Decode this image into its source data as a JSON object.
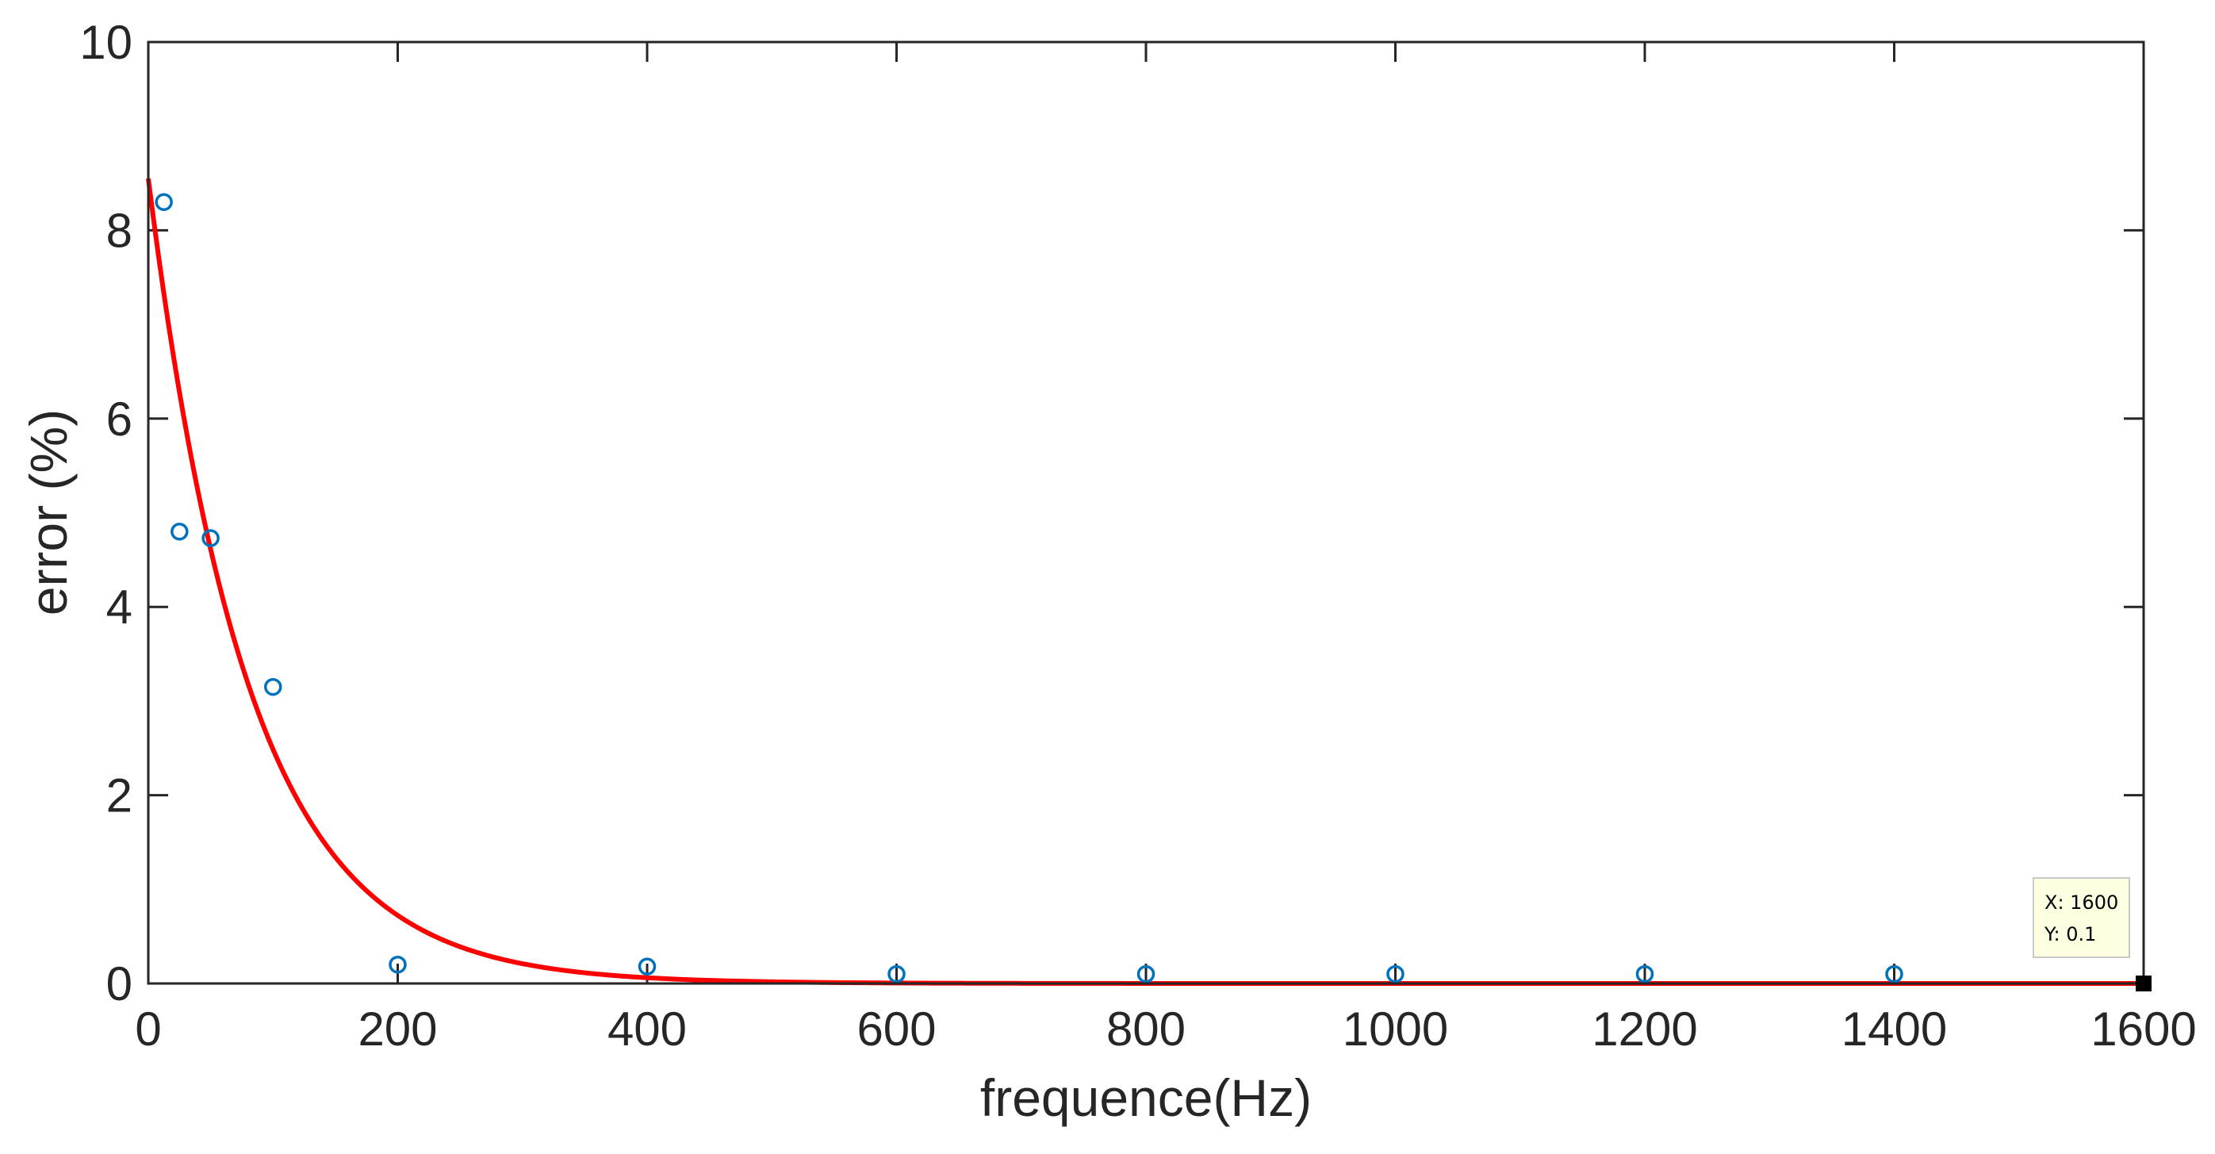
{
  "chart_data": {
    "type": "scatter",
    "xlabel": "frequence(Hz)",
    "ylabel": "error (%)",
    "xlim": [
      0,
      1600
    ],
    "ylim": [
      0,
      10
    ],
    "xticks": [
      0,
      200,
      400,
      600,
      800,
      1000,
      1200,
      1400,
      1600
    ],
    "yticks": [
      0,
      2,
      4,
      6,
      8,
      10
    ],
    "xtick_labels": [
      "0",
      "200",
      "400",
      "600",
      "800",
      "1000",
      "1200",
      "1400",
      "1600"
    ],
    "ytick_labels": [
      "0",
      "2",
      "4",
      "6",
      "8",
      "10"
    ],
    "grid": false,
    "box": true,
    "series": [
      {
        "kind": "markers",
        "marker": "circle-open",
        "color": "#0072BD",
        "points": [
          {
            "x": 12.5,
            "y": 8.3
          },
          {
            "x": 25,
            "y": 4.8
          },
          {
            "x": 50,
            "y": 4.73
          },
          {
            "x": 100,
            "y": 3.15
          },
          {
            "x": 200,
            "y": 0.2
          },
          {
            "x": 400,
            "y": 0.18
          },
          {
            "x": 600,
            "y": 0.1
          },
          {
            "x": 800,
            "y": 0.1
          },
          {
            "x": 1000,
            "y": 0.1
          },
          {
            "x": 1200,
            "y": 0.1
          },
          {
            "x": 1400,
            "y": 0.1
          }
        ]
      },
      {
        "kind": "fit-line",
        "color": "#FF0000",
        "x_start": 0,
        "x_end": 1600,
        "y_at_start": 8.55,
        "decay_per_hz": 0.01235
      }
    ],
    "datatip": {
      "x_label": "X: 1600",
      "y_label": "Y: 0.1",
      "x": 1600,
      "y": 0
    }
  }
}
